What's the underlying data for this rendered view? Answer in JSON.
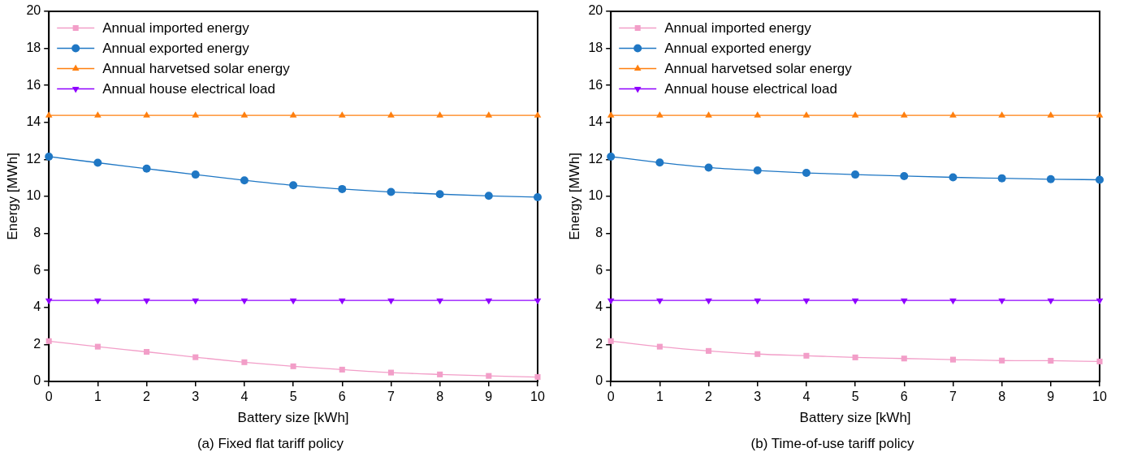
{
  "chart_data": [
    {
      "type": "line",
      "subtitle": "(a) Fixed flat tariff policy",
      "xlabel": "Battery size [kWh]",
      "ylabel": "Energy [MWh]",
      "x": [
        0,
        1,
        2,
        3,
        4,
        5,
        6,
        7,
        8,
        9,
        10
      ],
      "series": [
        {
          "name": "Annual imported energy",
          "color": "#f29ec8",
          "marker": "square",
          "values": [
            2.18,
            1.88,
            1.6,
            1.31,
            1.04,
            0.82,
            0.64,
            0.48,
            0.38,
            0.3,
            0.24
          ]
        },
        {
          "name": "Annual exported energy",
          "color": "#1f77c4",
          "marker": "circle",
          "values": [
            12.15,
            11.82,
            11.5,
            11.18,
            10.87,
            10.6,
            10.4,
            10.24,
            10.12,
            10.03,
            9.96
          ]
        },
        {
          "name": "Annual harvetsed solar energy",
          "color": "#ff7f0e",
          "marker": "triangle",
          "values": [
            14.38,
            14.38,
            14.38,
            14.38,
            14.38,
            14.38,
            14.38,
            14.38,
            14.38,
            14.38,
            14.38
          ]
        },
        {
          "name": "Annual house electrical load",
          "color": "#8f00ff",
          "marker": "triangle-down",
          "values": [
            4.38,
            4.38,
            4.38,
            4.38,
            4.38,
            4.38,
            4.38,
            4.38,
            4.38,
            4.38,
            4.38
          ]
        }
      ],
      "xlim": [
        0,
        10
      ],
      "xticks": [
        0,
        1,
        2,
        3,
        4,
        5,
        6,
        7,
        8,
        9,
        10
      ],
      "ylim": [
        0,
        20
      ],
      "yticks": [
        0,
        2,
        4,
        6,
        8,
        10,
        12,
        14,
        16,
        18,
        20
      ],
      "grid": false,
      "legend": "top left",
      "line_style": "solid"
    },
    {
      "type": "line",
      "subtitle": "(b) Time-of-use tariff policy",
      "xlabel": "Battery size [kWh]",
      "ylabel": "Energy [MWh]",
      "x": [
        0,
        1,
        2,
        3,
        4,
        5,
        6,
        7,
        8,
        9,
        10
      ],
      "series": [
        {
          "name": "Annual imported energy",
          "color": "#f29ec8",
          "marker": "square",
          "values": [
            2.18,
            1.88,
            1.65,
            1.48,
            1.39,
            1.3,
            1.24,
            1.18,
            1.13,
            1.12,
            1.08
          ]
        },
        {
          "name": "Annual exported energy",
          "color": "#1f77c4",
          "marker": "circle",
          "values": [
            12.15,
            11.83,
            11.56,
            11.4,
            11.27,
            11.18,
            11.1,
            11.03,
            10.98,
            10.93,
            10.9
          ]
        },
        {
          "name": "Annual harvetsed solar energy",
          "color": "#ff7f0e",
          "marker": "triangle",
          "values": [
            14.38,
            14.38,
            14.38,
            14.38,
            14.38,
            14.38,
            14.38,
            14.38,
            14.38,
            14.38,
            14.38
          ]
        },
        {
          "name": "Annual house electrical load",
          "color": "#8f00ff",
          "marker": "triangle-down",
          "values": [
            4.38,
            4.38,
            4.38,
            4.38,
            4.38,
            4.38,
            4.38,
            4.38,
            4.38,
            4.38,
            4.38
          ]
        }
      ],
      "xlim": [
        0,
        10
      ],
      "xticks": [
        0,
        1,
        2,
        3,
        4,
        5,
        6,
        7,
        8,
        9,
        10
      ],
      "ylim": [
        0,
        20
      ],
      "yticks": [
        0,
        2,
        4,
        6,
        8,
        10,
        12,
        14,
        16,
        18,
        20
      ],
      "grid": false,
      "legend": "top left",
      "line_style": "solid"
    }
  ]
}
